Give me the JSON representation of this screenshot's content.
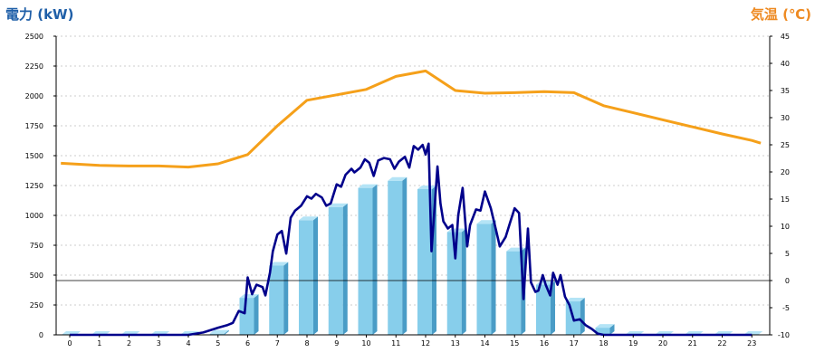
{
  "chart_data": {
    "type": "bar+line",
    "left_axis_title": "電力 (kW)",
    "right_axis_title": "気温 (℃)",
    "colors": {
      "left_title": "#1f5fa8",
      "right_title": "#ee8a22",
      "bar": "#87ceeb",
      "bar_side": "#4a9cc6",
      "bar_top": "#b4e4f6",
      "power_line": "#00008b",
      "temp_line": "#f5a01a",
      "grid": "#cccccc"
    },
    "x_ticks": [
      "0",
      "1",
      "2",
      "3",
      "4",
      "5",
      "6",
      "7",
      "8",
      "9",
      "10",
      "11",
      "12",
      "13",
      "14",
      "15",
      "16",
      "17",
      "18",
      "19",
      "20",
      "21",
      "22",
      "23"
    ],
    "ylim_left": [
      0,
      2500
    ],
    "yticks_left": [
      "0",
      "250",
      "500",
      "750",
      "1000",
      "1250",
      "1500",
      "1750",
      "2000",
      "2250",
      "2500"
    ],
    "ylim_right": [
      -10,
      45
    ],
    "yticks_right": [
      "-10",
      "-5",
      "0",
      "5",
      "10",
      "15",
      "20",
      "25",
      "30",
      "35",
      "40",
      "45"
    ],
    "bars": [
      0,
      0,
      0,
      0,
      0,
      10,
      310,
      580,
      960,
      1070,
      1230,
      1290,
      1220,
      860,
      930,
      700,
      420,
      280,
      60,
      0,
      0,
      0,
      0,
      0
    ],
    "power_line": [
      [
        0,
        0
      ],
      [
        1,
        0
      ],
      [
        2,
        0
      ],
      [
        3,
        0
      ],
      [
        4,
        0
      ],
      [
        4.5,
        20
      ],
      [
        5,
        60
      ],
      [
        5.3,
        80
      ],
      [
        5.5,
        100
      ],
      [
        5.7,
        200
      ],
      [
        5.9,
        180
      ],
      [
        6.0,
        480
      ],
      [
        6.15,
        340
      ],
      [
        6.3,
        420
      ],
      [
        6.5,
        400
      ],
      [
        6.6,
        330
      ],
      [
        6.75,
        520
      ],
      [
        6.85,
        700
      ],
      [
        7.0,
        840
      ],
      [
        7.15,
        870
      ],
      [
        7.3,
        680
      ],
      [
        7.45,
        980
      ],
      [
        7.6,
        1040
      ],
      [
        7.8,
        1080
      ],
      [
        8.0,
        1160
      ],
      [
        8.15,
        1140
      ],
      [
        8.3,
        1180
      ],
      [
        8.5,
        1150
      ],
      [
        8.65,
        1080
      ],
      [
        8.8,
        1100
      ],
      [
        9.0,
        1260
      ],
      [
        9.15,
        1240
      ],
      [
        9.3,
        1340
      ],
      [
        9.5,
        1390
      ],
      [
        9.6,
        1360
      ],
      [
        9.8,
        1400
      ],
      [
        9.95,
        1470
      ],
      [
        10.1,
        1440
      ],
      [
        10.25,
        1330
      ],
      [
        10.4,
        1460
      ],
      [
        10.6,
        1480
      ],
      [
        10.8,
        1470
      ],
      [
        10.95,
        1390
      ],
      [
        11.1,
        1450
      ],
      [
        11.3,
        1490
      ],
      [
        11.45,
        1400
      ],
      [
        11.6,
        1580
      ],
      [
        11.75,
        1550
      ],
      [
        11.9,
        1590
      ],
      [
        12.0,
        1510
      ],
      [
        12.1,
        1600
      ],
      [
        12.2,
        700
      ],
      [
        12.4,
        1410
      ],
      [
        12.5,
        1100
      ],
      [
        12.6,
        950
      ],
      [
        12.75,
        890
      ],
      [
        12.9,
        920
      ],
      [
        13.0,
        640
      ],
      [
        13.1,
        1000
      ],
      [
        13.25,
        1230
      ],
      [
        13.4,
        740
      ],
      [
        13.5,
        920
      ],
      [
        13.7,
        1050
      ],
      [
        13.85,
        1040
      ],
      [
        14.0,
        1200
      ],
      [
        14.2,
        1060
      ],
      [
        14.4,
        850
      ],
      [
        14.5,
        740
      ],
      [
        14.7,
        820
      ],
      [
        14.85,
        940
      ],
      [
        15.0,
        1060
      ],
      [
        15.15,
        1020
      ],
      [
        15.3,
        300
      ],
      [
        15.45,
        890
      ],
      [
        15.55,
        440
      ],
      [
        15.7,
        360
      ],
      [
        15.8,
        370
      ],
      [
        15.95,
        500
      ],
      [
        16.05,
        420
      ],
      [
        16.2,
        330
      ],
      [
        16.3,
        520
      ],
      [
        16.45,
        420
      ],
      [
        16.55,
        500
      ],
      [
        16.7,
        320
      ],
      [
        16.85,
        250
      ],
      [
        17.0,
        120
      ],
      [
        17.2,
        130
      ],
      [
        17.4,
        80
      ],
      [
        17.6,
        50
      ],
      [
        17.8,
        10
      ],
      [
        18,
        0
      ],
      [
        19,
        0
      ],
      [
        20,
        0
      ],
      [
        21,
        0
      ],
      [
        22,
        0
      ],
      [
        23,
        0
      ]
    ],
    "temp_line": [
      [
        -0.3,
        21.6
      ],
      [
        1,
        21.2
      ],
      [
        2,
        21.1
      ],
      [
        3,
        21.1
      ],
      [
        4,
        20.9
      ],
      [
        5,
        21.5
      ],
      [
        6,
        23.2
      ],
      [
        7,
        28.5
      ],
      [
        8,
        33.2
      ],
      [
        9,
        34.2
      ],
      [
        10,
        35.2
      ],
      [
        11,
        37.6
      ],
      [
        12,
        38.6
      ],
      [
        13,
        35.0
      ],
      [
        14,
        34.5
      ],
      [
        15,
        34.6
      ],
      [
        16,
        34.8
      ],
      [
        17,
        34.6
      ],
      [
        18,
        32.2
      ],
      [
        19,
        30.9
      ],
      [
        20,
        29.6
      ],
      [
        21,
        28.3
      ],
      [
        22,
        27.0
      ],
      [
        23,
        25.8
      ],
      [
        23.3,
        25.3
      ]
    ],
    "grid": true,
    "zero_line": true
  }
}
